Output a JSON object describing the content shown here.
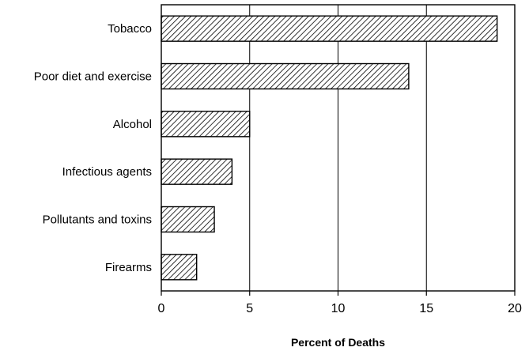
{
  "chart_data": {
    "type": "bar",
    "orientation": "horizontal",
    "categories": [
      "Tobacco",
      "Poor diet and exercise",
      "Alcohol",
      "Infectious agents",
      "Pollutants and toxins",
      "Firearms"
    ],
    "values": [
      19,
      14,
      5,
      4,
      3,
      2
    ],
    "title": "",
    "xlabel": "Percent of Deaths",
    "ylabel": "",
    "xlim": [
      0,
      20
    ],
    "xticks": [
      0,
      5,
      10,
      15,
      20
    ],
    "xtick_labels": [
      "0",
      "5",
      "10",
      "15",
      "20"
    ],
    "grid": "vertical",
    "bar_fill": "diagonal hatch",
    "colors": {
      "bar_stroke": "#000000",
      "hatch": "#000000",
      "background": "#ffffff"
    }
  }
}
